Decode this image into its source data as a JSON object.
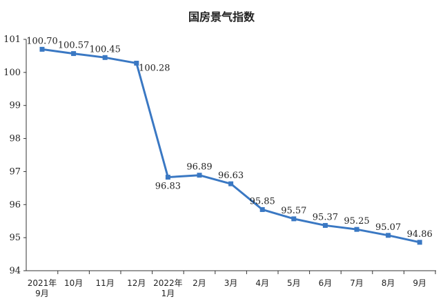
{
  "chart_data": {
    "type": "line",
    "title": "国房景气指数",
    "categories": [
      [
        "2021年",
        "9月"
      ],
      [
        "10月"
      ],
      [
        "11月"
      ],
      [
        "12月"
      ],
      [
        "2022年",
        "1月"
      ],
      [
        "2月"
      ],
      [
        "3月"
      ],
      [
        "4月"
      ],
      [
        "5月"
      ],
      [
        "6月"
      ],
      [
        "7月"
      ],
      [
        "8月"
      ],
      [
        "9月"
      ]
    ],
    "series": [
      {
        "values": [
          100.7,
          100.57,
          100.45,
          100.28,
          96.83,
          96.89,
          96.63,
          95.85,
          95.57,
          95.37,
          95.25,
          95.07,
          94.86
        ],
        "labels": [
          "100.70",
          "100.57",
          "100.45",
          "100.28",
          "96.83",
          "96.89",
          "96.63",
          "95.85",
          "95.57",
          "95.37",
          "95.25",
          "95.07",
          "94.86"
        ],
        "color": "#3a78c3"
      }
    ],
    "ylim": [
      94,
      101
    ],
    "yticks": [
      "94",
      "95",
      "96",
      "97",
      "98",
      "99",
      "100",
      "101"
    ],
    "label_positions": [
      "above",
      "above",
      "above",
      "below",
      "below",
      "above",
      "above",
      "above",
      "above",
      "above",
      "above",
      "above",
      "above"
    ],
    "grid": false,
    "legend": "none"
  }
}
